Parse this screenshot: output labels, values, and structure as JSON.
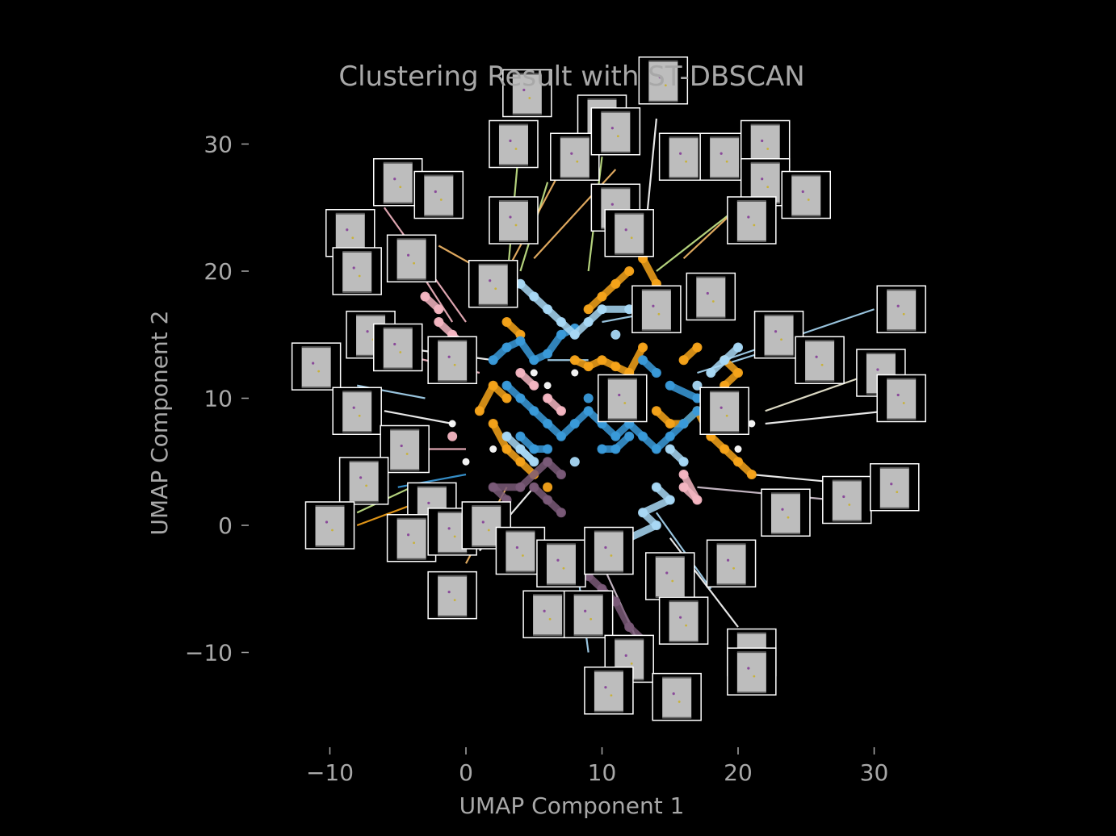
{
  "chart_data": {
    "type": "scatter",
    "title": "Clustering Result with ST-DBSCAN",
    "xlabel": "UMAP Component 1",
    "ylabel": "UMAP Component 2",
    "xlim": [
      -14,
      36
    ],
    "ylim": [
      -17,
      36
    ],
    "grid": false,
    "legend": "none",
    "background": "#000000",
    "text_color": "#a8a8a8",
    "xticks": [
      {
        "value": -10,
        "label": "−10"
      },
      {
        "value": 0,
        "label": "0"
      },
      {
        "value": 10,
        "label": "10"
      },
      {
        "value": 20,
        "label": "20"
      },
      {
        "value": 30,
        "label": "30"
      }
    ],
    "yticks": [
      {
        "value": -10,
        "label": "−10"
      },
      {
        "value": 0,
        "label": "0"
      },
      {
        "value": 10,
        "label": "10"
      },
      {
        "value": 20,
        "label": "20"
      },
      {
        "value": 30,
        "label": "30"
      }
    ],
    "clusters": [
      {
        "color": "#f5a31a",
        "points": [
          [
            8,
            13
          ],
          [
            9,
            12.5
          ],
          [
            10,
            13
          ],
          [
            11,
            12.5
          ],
          [
            12,
            12
          ],
          [
            13,
            14
          ],
          [
            9,
            17
          ],
          [
            10,
            18
          ],
          [
            11,
            19
          ],
          [
            12,
            20
          ],
          [
            3,
            16
          ],
          [
            4,
            15
          ],
          [
            2,
            8
          ],
          [
            3,
            6
          ],
          [
            4,
            5
          ],
          [
            5,
            4
          ],
          [
            14,
            9
          ],
          [
            15,
            8
          ],
          [
            16,
            8
          ],
          [
            17,
            9
          ],
          [
            18,
            7
          ],
          [
            19,
            6
          ],
          [
            20,
            5
          ],
          [
            21,
            4
          ],
          [
            19,
            13
          ],
          [
            20,
            12
          ],
          [
            19,
            11
          ],
          [
            16,
            13
          ],
          [
            17,
            14
          ],
          [
            6,
            3
          ],
          [
            3,
            10
          ],
          [
            2,
            11
          ],
          [
            1,
            9
          ],
          [
            14,
            19
          ],
          [
            13,
            21
          ]
        ]
      },
      {
        "color": "#3a9ad9",
        "points": [
          [
            2,
            13
          ],
          [
            3,
            14
          ],
          [
            4,
            14.5
          ],
          [
            5,
            13
          ],
          [
            6,
            13.5
          ],
          [
            7,
            15
          ],
          [
            8,
            15.5
          ],
          [
            3,
            11
          ],
          [
            4,
            10
          ],
          [
            5,
            9
          ],
          [
            6,
            8
          ],
          [
            7,
            7
          ],
          [
            8,
            8
          ],
          [
            9,
            9
          ],
          [
            10,
            8
          ],
          [
            11,
            7
          ],
          [
            12,
            8
          ],
          [
            13,
            7
          ],
          [
            14,
            6
          ],
          [
            15,
            7
          ],
          [
            16,
            8
          ],
          [
            17,
            9
          ],
          [
            10,
            6
          ],
          [
            11,
            6
          ],
          [
            12,
            7
          ],
          [
            4,
            7
          ],
          [
            5,
            6
          ],
          [
            6,
            6
          ],
          [
            13,
            13
          ],
          [
            14,
            12
          ],
          [
            17,
            10
          ],
          [
            15,
            11
          ],
          [
            9,
            10
          ]
        ]
      },
      {
        "color": "#a8d8f5",
        "points": [
          [
            4,
            19
          ],
          [
            5,
            18
          ],
          [
            6,
            17
          ],
          [
            7,
            16
          ],
          [
            8,
            15
          ],
          [
            9,
            16
          ],
          [
            10,
            17
          ],
          [
            12,
            17
          ],
          [
            14,
            3
          ],
          [
            15,
            2
          ],
          [
            13,
            1
          ],
          [
            14,
            0
          ],
          [
            12,
            -1
          ],
          [
            15,
            6
          ],
          [
            16,
            5
          ],
          [
            4,
            6
          ],
          [
            5,
            5
          ],
          [
            3,
            7
          ],
          [
            18,
            12
          ],
          [
            19,
            13
          ],
          [
            20,
            14
          ],
          [
            17,
            11
          ],
          [
            11,
            15
          ],
          [
            8,
            5
          ]
        ]
      },
      {
        "color": "#f4b6c2",
        "points": [
          [
            -2,
            16
          ],
          [
            -1,
            15
          ],
          [
            0,
            14
          ],
          [
            -2,
            17
          ],
          [
            -3,
            18
          ],
          [
            -1,
            14
          ],
          [
            6,
            10
          ],
          [
            7,
            9
          ],
          [
            16,
            3
          ],
          [
            17,
            2
          ],
          [
            16,
            4
          ],
          [
            5,
            11
          ],
          [
            4,
            12
          ],
          [
            -1,
            7
          ]
        ]
      },
      {
        "color": "#7a5a78",
        "points": [
          [
            5,
            3
          ],
          [
            6,
            2
          ],
          [
            7,
            1
          ],
          [
            8,
            -2
          ],
          [
            9,
            -4
          ],
          [
            10,
            -5
          ],
          [
            11,
            -6
          ],
          [
            12,
            -8
          ],
          [
            13,
            -9
          ],
          [
            7,
            4
          ],
          [
            6,
            5
          ],
          [
            4,
            3
          ],
          [
            2,
            3
          ],
          [
            3,
            2
          ],
          [
            9,
            -7
          ],
          [
            11,
            -10
          ]
        ]
      },
      {
        "color": "#ffffff",
        "points": [
          [
            5,
            12
          ],
          [
            6,
            11
          ],
          [
            8,
            12
          ],
          [
            -1,
            8
          ],
          [
            21,
            8
          ],
          [
            20,
            6
          ],
          [
            0,
            5
          ],
          [
            2,
            6
          ]
        ]
      }
    ],
    "leader_lines": [
      {
        "color": "#c6e88a",
        "from": [
          3,
          19
        ],
        "to": [
          4,
          31
        ]
      },
      {
        "color": "#c6e88a",
        "from": [
          4,
          20
        ],
        "to": [
          6,
          27
        ]
      },
      {
        "color": "#f5b968",
        "from": [
          3,
          20
        ],
        "to": [
          8,
          30
        ]
      },
      {
        "color": "#f5b968",
        "from": [
          5,
          21
        ],
        "to": [
          11,
          28
        ]
      },
      {
        "color": "#c6e88a",
        "from": [
          9,
          20
        ],
        "to": [
          10,
          29
        ]
      },
      {
        "color": "#ffffff",
        "from": [
          13,
          21
        ],
        "to": [
          14,
          32
        ]
      },
      {
        "color": "#c6e88a",
        "from": [
          14,
          20
        ],
        "to": [
          20,
          25
        ]
      },
      {
        "color": "#f5b968",
        "from": [
          16,
          21
        ],
        "to": [
          21,
          26
        ]
      },
      {
        "color": "#f4b6c2",
        "from": [
          0,
          16
        ],
        "to": [
          -6,
          25
        ]
      },
      {
        "color": "#f4b6c2",
        "from": [
          -1,
          16
        ],
        "to": [
          -4,
          21
        ]
      },
      {
        "color": "#f5b968",
        "from": [
          3,
          19
        ],
        "to": [
          -2,
          22
        ]
      },
      {
        "color": "#a8d8f5",
        "from": [
          19,
          13
        ],
        "to": [
          30,
          17
        ]
      },
      {
        "color": "#a8d8f5",
        "from": [
          17,
          12
        ],
        "to": [
          23,
          14
        ]
      },
      {
        "color": "#f3efd8",
        "from": [
          22,
          9
        ],
        "to": [
          30,
          12
        ]
      },
      {
        "color": "#ffffff",
        "from": [
          22,
          8
        ],
        "to": [
          31,
          9
        ]
      },
      {
        "color": "#ffffff",
        "from": [
          21,
          4
        ],
        "to": [
          31,
          3
        ]
      },
      {
        "color": "#d6c6d4",
        "from": [
          17,
          3
        ],
        "to": [
          27,
          2
        ]
      },
      {
        "color": "#ffffff",
        "from": [
          15,
          -1
        ],
        "to": [
          20,
          -8
        ]
      },
      {
        "color": "#a8d8f5",
        "from": [
          14,
          1
        ],
        "to": [
          18,
          -5
        ]
      },
      {
        "color": "#d6c6d4",
        "from": [
          10,
          -3
        ],
        "to": [
          13,
          -10
        ]
      },
      {
        "color": "#a8d8f5",
        "from": [
          8,
          -2
        ],
        "to": [
          9,
          -10
        ]
      },
      {
        "color": "#ffffff",
        "from": [
          5,
          3
        ],
        "to": [
          1,
          -2
        ]
      },
      {
        "color": "#f5b968",
        "from": [
          3,
          3
        ],
        "to": [
          0,
          -3
        ]
      },
      {
        "color": "#3a9ad9",
        "from": [
          0,
          4
        ],
        "to": [
          -5,
          3
        ]
      },
      {
        "color": "#f5a31a",
        "from": [
          -3,
          2
        ],
        "to": [
          -8,
          0
        ]
      },
      {
        "color": "#c6e88a",
        "from": [
          -4,
          3
        ],
        "to": [
          -8,
          1
        ]
      },
      {
        "color": "#ffffff",
        "from": [
          -1,
          8
        ],
        "to": [
          -6,
          9
        ]
      },
      {
        "color": "#a8d8f5",
        "from": [
          -3,
          10
        ],
        "to": [
          -8,
          11
        ]
      },
      {
        "color": "#f4b6c2",
        "from": [
          0,
          6
        ],
        "to": [
          -5,
          6
        ]
      },
      {
        "color": "#ffffff",
        "from": [
          2,
          13
        ],
        "to": [
          -5,
          14
        ]
      },
      {
        "color": "#f4b6c2",
        "from": [
          1,
          12
        ],
        "to": [
          -7,
          14
        ]
      },
      {
        "color": "#a8d8f5",
        "from": [
          10,
          16
        ],
        "to": [
          15,
          17
        ]
      },
      {
        "color": "#a8d8f5",
        "from": [
          6,
          13
        ],
        "to": [
          9,
          13
        ]
      }
    ],
    "thumbnails": [
      {
        "at": [
          4.5,
          34
        ]
      },
      {
        "at": [
          10,
          32
        ]
      },
      {
        "at": [
          14.5,
          35
        ]
      },
      {
        "at": [
          3.5,
          30
        ]
      },
      {
        "at": [
          8,
          29
        ]
      },
      {
        "at": [
          11,
          31
        ]
      },
      {
        "at": [
          16,
          29
        ]
      },
      {
        "at": [
          19,
          29
        ]
      },
      {
        "at": [
          22,
          30
        ]
      },
      {
        "at": [
          -5,
          27
        ]
      },
      {
        "at": [
          -2,
          26
        ]
      },
      {
        "at": [
          11,
          25
        ]
      },
      {
        "at": [
          22,
          27
        ]
      },
      {
        "at": [
          25,
          26
        ]
      },
      {
        "at": [
          -8.5,
          23
        ]
      },
      {
        "at": [
          3.5,
          24
        ]
      },
      {
        "at": [
          12,
          23
        ]
      },
      {
        "at": [
          21,
          24
        ]
      },
      {
        "at": [
          -8,
          20
        ]
      },
      {
        "at": [
          -4,
          21
        ]
      },
      {
        "at": [
          2,
          19
        ]
      },
      {
        "at": [
          14,
          17
        ]
      },
      {
        "at": [
          18,
          18
        ]
      },
      {
        "at": [
          32,
          17
        ]
      },
      {
        "at": [
          -7,
          15
        ]
      },
      {
        "at": [
          -5,
          14
        ]
      },
      {
        "at": [
          -1,
          13
        ]
      },
      {
        "at": [
          23,
          15
        ]
      },
      {
        "at": [
          26,
          13
        ]
      },
      {
        "at": [
          -11,
          12.5
        ]
      },
      {
        "at": [
          11.5,
          10
        ]
      },
      {
        "at": [
          19,
          9
        ]
      },
      {
        "at": [
          30.5,
          12
        ]
      },
      {
        "at": [
          32,
          10
        ]
      },
      {
        "at": [
          -8,
          9
        ]
      },
      {
        "at": [
          -4.5,
          6
        ]
      },
      {
        "at": [
          -7.5,
          3.5
        ]
      },
      {
        "at": [
          -2.5,
          1.5
        ]
      },
      {
        "at": [
          -10,
          0
        ]
      },
      {
        "at": [
          -4,
          -1
        ]
      },
      {
        "at": [
          -1,
          -0.5
        ]
      },
      {
        "at": [
          1.5,
          0
        ]
      },
      {
        "at": [
          4,
          -2
        ]
      },
      {
        "at": [
          7,
          -3
        ]
      },
      {
        "at": [
          10.5,
          -2
        ]
      },
      {
        "at": [
          15,
          -4
        ]
      },
      {
        "at": [
          19.5,
          -3
        ]
      },
      {
        "at": [
          23.5,
          1
        ]
      },
      {
        "at": [
          28,
          2
        ]
      },
      {
        "at": [
          31.5,
          3
        ]
      },
      {
        "at": [
          -1,
          -5.5
        ]
      },
      {
        "at": [
          6,
          -7
        ]
      },
      {
        "at": [
          9,
          -7
        ]
      },
      {
        "at": [
          16,
          -7.5
        ]
      },
      {
        "at": [
          21,
          -10
        ]
      },
      {
        "at": [
          12,
          -10.5
        ]
      },
      {
        "at": [
          10.5,
          -13
        ]
      },
      {
        "at": [
          15.5,
          -13.5
        ]
      },
      {
        "at": [
          21,
          -11.5
        ]
      }
    ]
  }
}
